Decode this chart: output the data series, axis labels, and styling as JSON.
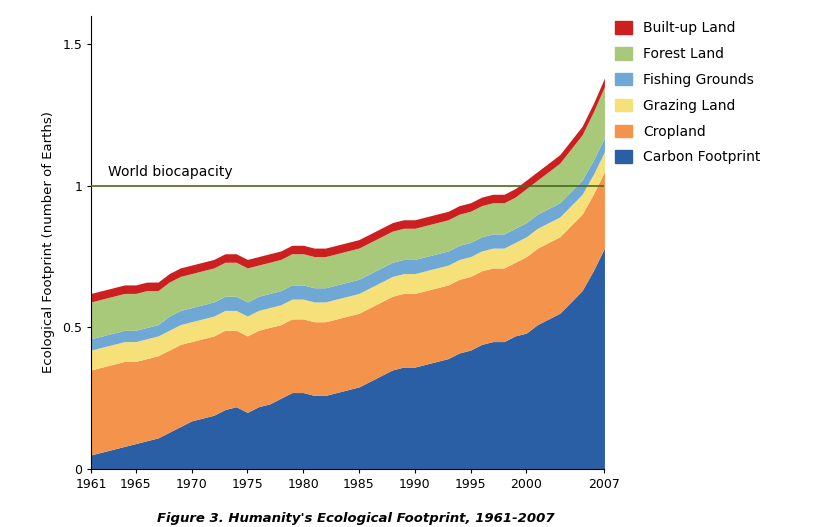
{
  "title": "Figure 3. Humanity's Ecological Footprint, 1961-2007",
  "ylabel": "Ecological Footprint (number of Earths)",
  "biocapacity_label": "World biocapacity",
  "biocapacity_value": 1.0,
  "years": [
    1961,
    1962,
    1963,
    1964,
    1965,
    1966,
    1967,
    1968,
    1969,
    1970,
    1971,
    1972,
    1973,
    1974,
    1975,
    1976,
    1977,
    1978,
    1979,
    1980,
    1981,
    1982,
    1983,
    1984,
    1985,
    1986,
    1987,
    1988,
    1989,
    1990,
    1991,
    1992,
    1993,
    1994,
    1995,
    1996,
    1997,
    1998,
    1999,
    2000,
    2001,
    2002,
    2003,
    2004,
    2005,
    2006,
    2007
  ],
  "carbon_footprint": [
    0.05,
    0.06,
    0.07,
    0.08,
    0.09,
    0.1,
    0.11,
    0.13,
    0.15,
    0.17,
    0.18,
    0.19,
    0.21,
    0.22,
    0.2,
    0.22,
    0.23,
    0.25,
    0.27,
    0.27,
    0.26,
    0.26,
    0.27,
    0.28,
    0.29,
    0.31,
    0.33,
    0.35,
    0.36,
    0.36,
    0.37,
    0.38,
    0.39,
    0.41,
    0.42,
    0.44,
    0.45,
    0.45,
    0.47,
    0.48,
    0.51,
    0.53,
    0.55,
    0.59,
    0.63,
    0.7,
    0.78
  ],
  "cropland": [
    0.3,
    0.3,
    0.3,
    0.3,
    0.29,
    0.29,
    0.29,
    0.29,
    0.29,
    0.28,
    0.28,
    0.28,
    0.28,
    0.27,
    0.27,
    0.27,
    0.27,
    0.26,
    0.26,
    0.26,
    0.26,
    0.26,
    0.26,
    0.26,
    0.26,
    0.26,
    0.26,
    0.26,
    0.26,
    0.26,
    0.26,
    0.26,
    0.26,
    0.26,
    0.26,
    0.26,
    0.26,
    0.26,
    0.26,
    0.27,
    0.27,
    0.27,
    0.27,
    0.27,
    0.27,
    0.27,
    0.27
  ],
  "grazing_land": [
    0.07,
    0.07,
    0.07,
    0.07,
    0.07,
    0.07,
    0.07,
    0.07,
    0.07,
    0.07,
    0.07,
    0.07,
    0.07,
    0.07,
    0.07,
    0.07,
    0.07,
    0.07,
    0.07,
    0.07,
    0.07,
    0.07,
    0.07,
    0.07,
    0.07,
    0.07,
    0.07,
    0.07,
    0.07,
    0.07,
    0.07,
    0.07,
    0.07,
    0.07,
    0.07,
    0.07,
    0.07,
    0.07,
    0.07,
    0.07,
    0.07,
    0.07,
    0.07,
    0.07,
    0.07,
    0.07,
    0.07
  ],
  "fishing_grounds": [
    0.04,
    0.04,
    0.04,
    0.04,
    0.04,
    0.04,
    0.04,
    0.05,
    0.05,
    0.05,
    0.05,
    0.05,
    0.05,
    0.05,
    0.05,
    0.05,
    0.05,
    0.05,
    0.05,
    0.05,
    0.05,
    0.05,
    0.05,
    0.05,
    0.05,
    0.05,
    0.05,
    0.05,
    0.05,
    0.05,
    0.05,
    0.05,
    0.05,
    0.05,
    0.05,
    0.05,
    0.05,
    0.05,
    0.05,
    0.05,
    0.05,
    0.05,
    0.05,
    0.05,
    0.05,
    0.05,
    0.05
  ],
  "forest_land": [
    0.13,
    0.13,
    0.13,
    0.13,
    0.13,
    0.13,
    0.12,
    0.12,
    0.12,
    0.12,
    0.12,
    0.12,
    0.12,
    0.12,
    0.12,
    0.11,
    0.11,
    0.11,
    0.11,
    0.11,
    0.11,
    0.11,
    0.11,
    0.11,
    0.11,
    0.11,
    0.11,
    0.11,
    0.11,
    0.11,
    0.11,
    0.11,
    0.11,
    0.11,
    0.11,
    0.11,
    0.11,
    0.11,
    0.11,
    0.12,
    0.12,
    0.13,
    0.14,
    0.15,
    0.16,
    0.17,
    0.18
  ],
  "builtup_land": [
    0.03,
    0.03,
    0.03,
    0.03,
    0.03,
    0.03,
    0.03,
    0.03,
    0.03,
    0.03,
    0.03,
    0.03,
    0.03,
    0.03,
    0.03,
    0.03,
    0.03,
    0.03,
    0.03,
    0.03,
    0.03,
    0.03,
    0.03,
    0.03,
    0.03,
    0.03,
    0.03,
    0.03,
    0.03,
    0.03,
    0.03,
    0.03,
    0.03,
    0.03,
    0.03,
    0.03,
    0.03,
    0.03,
    0.03,
    0.03,
    0.03,
    0.03,
    0.03,
    0.03,
    0.03,
    0.03,
    0.03
  ],
  "colors": {
    "carbon_footprint": "#2b5fa5",
    "cropland": "#f4944c",
    "grazing_land": "#f5e07a",
    "fishing_grounds": "#6fa8d4",
    "forest_land": "#a8c87a",
    "builtup_land": "#cc2020"
  },
  "legend_labels": [
    "Built-up Land",
    "Forest Land",
    "Fishing Grounds",
    "Grazing Land",
    "Cropland",
    "Carbon Footprint"
  ],
  "legend_colors": [
    "#cc2020",
    "#a8c87a",
    "#6fa8d4",
    "#f5e07a",
    "#f4944c",
    "#2b5fa5"
  ],
  "ylim": [
    0.0,
    1.6
  ],
  "yticks": [
    0.0,
    0.5,
    1.0,
    1.5
  ],
  "xtick_labels": [
    "1961",
    "1965",
    "1970",
    "1975",
    "1980",
    "1985",
    "1990",
    "1995",
    "2000",
    "2007"
  ],
  "xtick_values": [
    1961,
    1965,
    1970,
    1975,
    1980,
    1985,
    1990,
    1995,
    2000,
    2007
  ],
  "background_color": "#ffffff",
  "figure_width": 8.28,
  "figure_height": 5.27,
  "dpi": 100
}
